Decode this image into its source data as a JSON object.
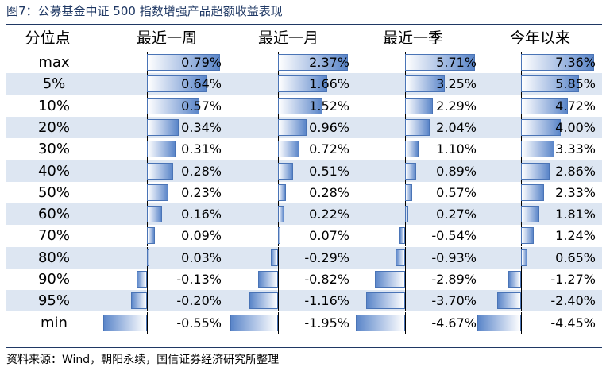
{
  "title": "图7：公募基金中证 500 指数增强产品超额收益表现",
  "source": "资料来源：Wind，朝阳永续，国信证券经济研究所整理",
  "colors": {
    "shade": "#dde6f2",
    "bar_border": "#4a74b6",
    "bar_fill": "#5b86c9",
    "rule": "#1f3864"
  },
  "table": {
    "header": [
      "分位点",
      "最近一周",
      "最近一月",
      "最近一季",
      "今年以来"
    ],
    "rows": [
      {
        "label": "max",
        "text": [
          "0.79%",
          "2.37%",
          "5.71%",
          "7.36%"
        ],
        "values": [
          0.79,
          2.37,
          5.71,
          7.36
        ]
      },
      {
        "label": "5%",
        "text": [
          "0.64%",
          "1.66%",
          "3.25%",
          "5.85%"
        ],
        "values": [
          0.64,
          1.66,
          3.25,
          5.85
        ]
      },
      {
        "label": "10%",
        "text": [
          "0.57%",
          "1.52%",
          "2.29%",
          "4.72%"
        ],
        "values": [
          0.57,
          1.52,
          2.29,
          4.72
        ]
      },
      {
        "label": "20%",
        "text": [
          "0.34%",
          "0.96%",
          "2.04%",
          "4.00%"
        ],
        "values": [
          0.34,
          0.96,
          2.04,
          4.0
        ]
      },
      {
        "label": "30%",
        "text": [
          "0.31%",
          "0.72%",
          "1.10%",
          "3.33%"
        ],
        "values": [
          0.31,
          0.72,
          1.1,
          3.33
        ]
      },
      {
        "label": "40%",
        "text": [
          "0.28%",
          "0.51%",
          "0.89%",
          "2.86%"
        ],
        "values": [
          0.28,
          0.51,
          0.89,
          2.86
        ]
      },
      {
        "label": "50%",
        "text": [
          "0.23%",
          "0.28%",
          "0.57%",
          "2.33%"
        ],
        "values": [
          0.23,
          0.28,
          0.57,
          2.33
        ]
      },
      {
        "label": "60%",
        "text": [
          "0.16%",
          "0.22%",
          "0.27%",
          "1.81%"
        ],
        "values": [
          0.16,
          0.22,
          0.27,
          1.81
        ]
      },
      {
        "label": "70%",
        "text": [
          "0.09%",
          "0.07%",
          "-0.54%",
          "1.24%"
        ],
        "values": [
          0.09,
          0.07,
          -0.54,
          1.24
        ]
      },
      {
        "label": "80%",
        "text": [
          "0.03%",
          "-0.29%",
          "-0.93%",
          "0.65%"
        ],
        "values": [
          0.03,
          -0.29,
          -0.93,
          0.65
        ]
      },
      {
        "label": "90%",
        "text": [
          "-0.13%",
          "-0.82%",
          "-2.89%",
          "-1.27%"
        ],
        "values": [
          -0.13,
          -0.82,
          -2.89,
          -1.27
        ]
      },
      {
        "label": "95%",
        "text": [
          "-0.20%",
          "-1.16%",
          "-3.70%",
          "-2.40%"
        ],
        "values": [
          -0.2,
          -1.16,
          -3.7,
          -2.4
        ]
      },
      {
        "label": "min",
        "text": [
          "-0.55%",
          "-1.95%",
          "-4.67%",
          "-4.45%"
        ],
        "values": [
          -0.55,
          -1.95,
          -4.67,
          -4.45
        ]
      }
    ]
  }
}
